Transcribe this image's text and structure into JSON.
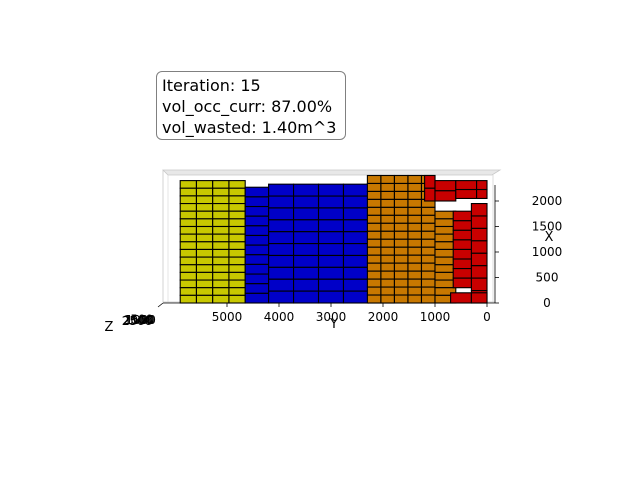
{
  "info_box": {
    "lines": [
      "Iteration: 15",
      "vol_occ_curr: 87.00%",
      "vol_wasted: 1.40m^3"
    ]
  },
  "chart_data": {
    "type": "3d-bar",
    "title": "",
    "iteration": 15,
    "vol_occ_curr_percent": 87.0,
    "vol_wasted_m3": 1.4,
    "y_axis": {
      "label": "Y",
      "ticks": [
        5000,
        4000,
        3000,
        2000,
        1000,
        0
      ],
      "reversed": true
    },
    "x_axis": {
      "label": "X",
      "ticks": [
        0,
        500,
        1000,
        1500,
        2000
      ],
      "placement": "right"
    },
    "z_axis": {
      "label": "Z",
      "ticks_overlapping": [
        "2500",
        "2000",
        "1500",
        "1000",
        "500"
      ]
    },
    "box_groups": [
      {
        "color": "#c8c800",
        "y_range": [
          4650,
          5900
        ],
        "x_range": [
          0,
          2400
        ],
        "rows": 16,
        "cols": 4
      },
      {
        "color": "#0000c8",
        "y_range": [
          4200,
          4650
        ],
        "x_range": [
          0,
          2270
        ],
        "rows": 12,
        "cols": 1
      },
      {
        "color": "#0000c8",
        "y_range": [
          1800,
          4200
        ],
        "x_range": [
          0,
          2330
        ],
        "rows": 10,
        "cols": 5
      },
      {
        "color": "#c87800",
        "y_range": [
          1000,
          2300
        ],
        "x_range": [
          0,
          2500
        ],
        "rows": 16,
        "cols": 5
      },
      {
        "color": "#c87800",
        "y_range": [
          600,
          1000
        ],
        "x_range": [
          0,
          1800
        ],
        "rows": 12,
        "cols": 1
      },
      {
        "color": "#c80000",
        "y_range": [
          1000,
          1200
        ],
        "x_range": [
          2000,
          2500
        ],
        "rows": 2,
        "cols": 1
      },
      {
        "color": "#c80000",
        "y_range": [
          600,
          1000
        ],
        "x_range": [
          2000,
          2400
        ],
        "rows": 2,
        "cols": 1
      },
      {
        "color": "#c80000",
        "y_range": [
          200,
          600
        ],
        "x_range": [
          2050,
          2400
        ],
        "rows": 2,
        "cols": 1
      },
      {
        "color": "#c80000",
        "y_range": [
          0,
          200
        ],
        "x_range": [
          2050,
          2400
        ],
        "rows": 2,
        "cols": 1
      },
      {
        "color": "#c80000",
        "y_range": [
          250,
          650
        ],
        "x_range": [
          300,
          1800
        ],
        "rows": 8,
        "cols": 1
      },
      {
        "color": "#c80000",
        "y_range": [
          0,
          300
        ],
        "x_range": [
          0,
          1950
        ],
        "rows": 8,
        "cols": 1
      },
      {
        "color": "#c80000",
        "y_range": [
          300,
          700
        ],
        "x_range": [
          0,
          200
        ],
        "rows": 1,
        "cols": 1
      },
      {
        "color": "#c80000",
        "y_range": [
          0,
          300
        ],
        "x_range": [
          0,
          200
        ],
        "rows": 1,
        "cols": 1
      }
    ]
  }
}
